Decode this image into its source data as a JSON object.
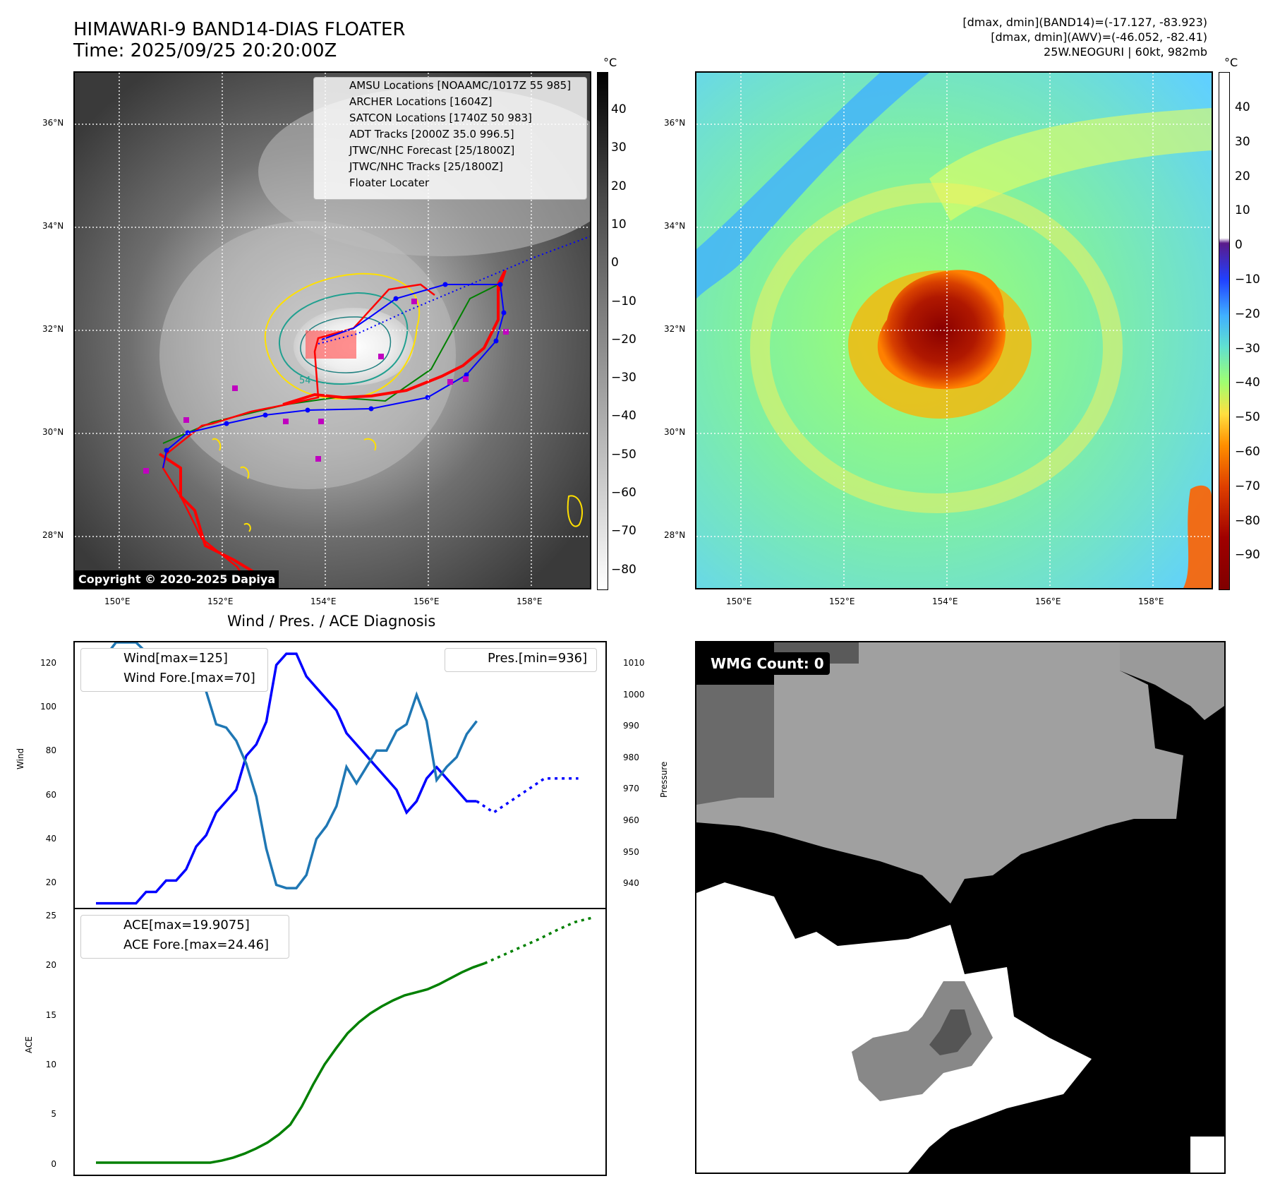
{
  "header": {
    "title_line1": "HIMAWARI-9 BAND14-DIAS FLOATER",
    "title_line2": "Time: 2025/09/25 20:20:00Z",
    "info_line1": "[dmax, dmin](BAND14)=(-17.127, -83.923)",
    "info_line2": "[dmax, dmin](AWV)=(-46.052, -82.41)",
    "info_line3": "25W.NEOGURI | 60kt, 982mb"
  },
  "map": {
    "lat_ticks": [
      "36°N",
      "34°N",
      "32°N",
      "30°N",
      "28°N"
    ],
    "lon_ticks": [
      "150°E",
      "152°E",
      "154°E",
      "156°E",
      "158°E"
    ],
    "copyright": "Copyright © 2020-2025 Dapiya",
    "contour_label": "54",
    "legend": [
      {
        "label": "AMSU Locations [NOAAMC/1017Z 55 985]",
        "color": "#c000c0",
        "kind": "square"
      },
      {
        "label": "ARCHER Locations [1604Z]",
        "color": "#c000c0",
        "kind": "square"
      },
      {
        "label": "SATCON Locations [1740Z 50 983]",
        "color": "#00b0b0",
        "kind": "x"
      },
      {
        "label": "ADT Tracks [2000Z 35.0 996.5]",
        "color": "#008000",
        "kind": "line"
      },
      {
        "label": "JTWC/NHC Forecast [25/1800Z]",
        "color": "#0000ff",
        "kind": "dotted"
      },
      {
        "label": "JTWC/NHC Tracks [25/1800Z]",
        "color": "#0000ff",
        "kind": "line-dot"
      },
      {
        "label": "Floater Locater",
        "color": "#ff0000",
        "kind": "line"
      }
    ]
  },
  "colorbar_gray": {
    "unit": "°C",
    "ticks": [
      "40",
      "30",
      "20",
      "10",
      "0",
      "−10",
      "−20",
      "−30",
      "−40",
      "−50",
      "−60",
      "−70",
      "−80"
    ]
  },
  "colorbar_awv": {
    "unit": "°C",
    "ticks": [
      "40",
      "30",
      "20",
      "10",
      "0",
      "−10",
      "−20",
      "−30",
      "−40",
      "−50",
      "−60",
      "−70",
      "−80",
      "−90"
    ]
  },
  "diag": {
    "title": "Wind / Pres. / ACE Diagnosis",
    "wind_ylabel": "Wind",
    "pres_ylabel": "Pressure",
    "ace_ylabel": "ACE",
    "wind_ticks": [
      "120",
      "100",
      "80",
      "60",
      "40",
      "20"
    ],
    "pres_ticks": [
      "1010",
      "1000",
      "990",
      "980",
      "970",
      "960",
      "950",
      "940"
    ],
    "ace_ticks": [
      "25",
      "20",
      "15",
      "10",
      "5",
      "0"
    ],
    "legend_wind": "Wind[max=125]",
    "legend_wind_fore": "Wind Fore.[max=70]",
    "legend_pres": "Pres.[min=936]",
    "legend_ace": "ACE[max=19.9075]",
    "legend_ace_fore": "ACE Fore.[max=24.46]"
  },
  "wmg": {
    "label": "WMG Count: 0"
  },
  "chart_data": [
    {
      "type": "line",
      "title": "Wind / Pres. / ACE Diagnosis",
      "ylabel": "Wind",
      "ylim": [
        13,
        130
      ],
      "series": [
        {
          "name": "Wind[max=125]",
          "color": "#0000ff",
          "style": "solid",
          "values": [
            15,
            15,
            15,
            15,
            15,
            20,
            20,
            25,
            25,
            30,
            40,
            45,
            55,
            60,
            65,
            80,
            85,
            95,
            120,
            125,
            125,
            115,
            110,
            105,
            100,
            90,
            85,
            80,
            75,
            70,
            65,
            55,
            60,
            70,
            75,
            70,
            65,
            60,
            60
          ]
        },
        {
          "name": "Wind Fore.[max=70]",
          "color": "#0000ff",
          "style": "dotted",
          "values": [
            60,
            55,
            60,
            65,
            70,
            70,
            70
          ]
        }
      ]
    },
    {
      "type": "line",
      "ylabel": "Pressure",
      "ylim": [
        932,
        1013
      ],
      "series": [
        {
          "name": "Pres.[min=936]",
          "color": "#1f77b4",
          "style": "solid",
          "values": [
            1009,
            1009,
            1013,
            1013,
            1013,
            1010,
            1009,
            1009,
            1009,
            1008,
            1004,
            998,
            988,
            987,
            983,
            976,
            966,
            950,
            939,
            938,
            938,
            942,
            953,
            957,
            963,
            975,
            970,
            975,
            980,
            980,
            986,
            988,
            997,
            989,
            971,
            975,
            978,
            985,
            989
          ]
        }
      ]
    },
    {
      "type": "line",
      "ylabel": "ACE",
      "ylim": [
        -1.2,
        25.3
      ],
      "series": [
        {
          "name": "ACE[max=19.9075]",
          "color": "#008000",
          "style": "solid",
          "values": [
            0,
            0,
            0,
            0,
            0,
            0,
            0,
            0,
            0,
            0,
            0,
            0.2,
            0.5,
            0.9,
            1.4,
            2.0,
            2.8,
            3.8,
            5.6,
            7.8,
            9.8,
            11.4,
            12.9,
            14.0,
            14.9,
            15.6,
            16.2,
            16.7,
            17.0,
            17.3,
            17.8,
            18.4,
            19.0,
            19.5,
            19.9
          ]
        },
        {
          "name": "ACE Fore.[max=24.46]",
          "color": "#008000",
          "style": "dotted",
          "values": [
            19.9,
            20.7,
            21.5,
            22.3,
            23.2,
            24.0,
            24.46
          ]
        }
      ]
    }
  ]
}
